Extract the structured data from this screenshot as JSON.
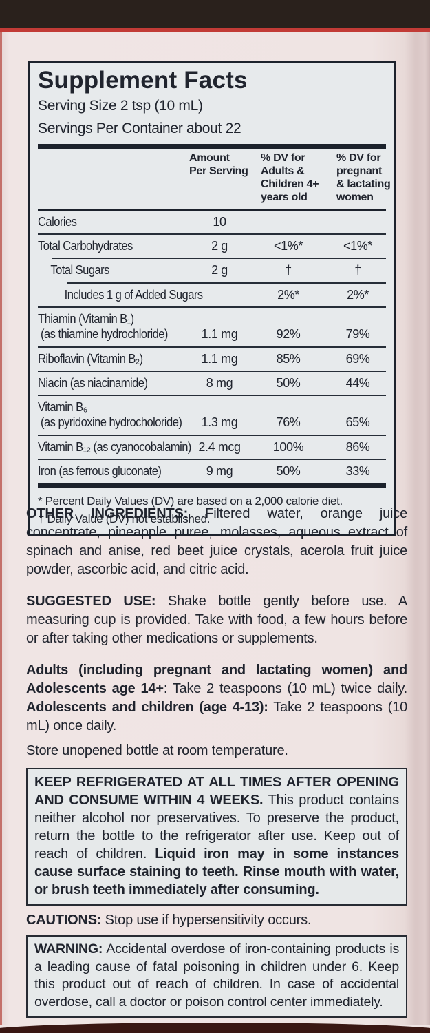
{
  "label": {
    "colors": {
      "panel_pink": "#efe4e3",
      "facts_background": "#e7eaec",
      "text": "#20242e",
      "red_edge": "#c23b36",
      "box_top_dark": "#2a211c",
      "box_bottom_maroon": "#3a1713"
    },
    "supplement_facts": {
      "title": "Supplement Facts",
      "serving_size": "Serving Size 2 tsp (10 mL)",
      "servings_per_container": "Servings Per Container about 22",
      "columns": [
        "Amount\nPer Serving",
        "% DV for\nAdults &\nChildren 4+\nyears old",
        "% DV for\npregnant\n& lactating\nwomen"
      ],
      "rows": [
        {
          "name": "Calories",
          "amount": "10",
          "dv_adults": "",
          "dv_pregnant": ""
        },
        {
          "name": "Total Carbohydrates",
          "amount": "2 g",
          "dv_adults": "<1%*",
          "dv_pregnant": "<1%*"
        },
        {
          "name": "Total Sugars",
          "amount": "2 g",
          "dv_adults": "†",
          "dv_pregnant": "†"
        },
        {
          "name": "Includes 1 g of Added Sugars",
          "amount": "",
          "dv_adults": "2%*",
          "dv_pregnant": "2%*"
        },
        {
          "name": "Thiamin (Vitamin B₁)\n (as thiamine hydrochloride)",
          "amount": "1.1 mg",
          "dv_adults": "92%",
          "dv_pregnant": "79%"
        },
        {
          "name": "Riboflavin (Vitamin B₂)",
          "amount": "1.1 mg",
          "dv_adults": "85%",
          "dv_pregnant": "69%"
        },
        {
          "name": "Niacin (as niacinamide)",
          "amount": "8 mg",
          "dv_adults": "50%",
          "dv_pregnant": "44%"
        },
        {
          "name": "Vitamin B₆\n (as pyridoxine hydrocholoride)",
          "amount": "1.3 mg",
          "dv_adults": "76%",
          "dv_pregnant": "65%"
        },
        {
          "name": "Vitamin B₁₂ (as cyanocobalamin)",
          "amount": "2.4 mcg",
          "dv_adults": "100%",
          "dv_pregnant": "86%"
        },
        {
          "name": "Iron (as ferrous gluconate)",
          "amount": "9 mg",
          "dv_adults": "50%",
          "dv_pregnant": "33%"
        }
      ],
      "footnotes": "* Percent Daily Values (DV) are based on a 2,000 calorie diet.\n† Daily Value (DV) not established."
    },
    "sections": {
      "other_ingredients": [
        {
          "text": "OTHER INGREDIENTS:",
          "bold": true
        },
        {
          "text": " Filtered water, orange juice concentrate, pineapple puree, molasses, aqueous extract of spinach and anise, red beet juice crystals, acerola fruit juice powder, ascorbic acid, and citric acid.",
          "bold": false
        }
      ],
      "suggested_use": [
        {
          "text": "SUGGESTED USE:",
          "bold": true
        },
        {
          "text": " Shake bottle gently before use. A measuring cup is provided. Take with food, a few hours before or after taking other medications or supplements.",
          "bold": false
        }
      ],
      "dosage": [
        {
          "text": "Adults (including pregnant and lactating women) and Adolescents age 14+",
          "bold": true
        },
        {
          "text": ": Take 2 teaspoons (10 mL) twice daily. ",
          "bold": false
        },
        {
          "text": "Adolescents and children (age 4-13):",
          "bold": true
        },
        {
          "text": " Take 2 teaspoons (10 mL) once daily.",
          "bold": false
        }
      ],
      "storage": "Store unopened bottle at room temperature.",
      "keep_refrigerated": [
        {
          "text": "KEEP REFRIGERATED AT ALL TIMES AFTER OPENING AND CONSUME WITHIN 4 WEEKS.",
          "bold": true
        },
        {
          "text": " This product contains neither alcohol nor preservatives. To preserve the product, return the bottle to the refrigerator after use. Keep out of reach of children. ",
          "bold": false
        },
        {
          "text": "Liquid iron may in some instances cause surface staining to teeth. Rinse mouth with water, or brush teeth immediately after consuming.",
          "bold": true
        }
      ],
      "cautions": [
        {
          "text": "CAUTIONS:",
          "bold": true
        },
        {
          "text": " Stop use if hypersensitivity occurs.",
          "bold": false
        }
      ],
      "warning": [
        {
          "text": "WARNING:",
          "bold": true
        },
        {
          "text": " Accidental overdose of iron-containing products is a leading cause of fatal poisoning in children under 6. Keep this product out of reach of children. In case of accidental overdose, call a doctor or poison control center immediately.",
          "bold": false
        }
      ]
    }
  }
}
